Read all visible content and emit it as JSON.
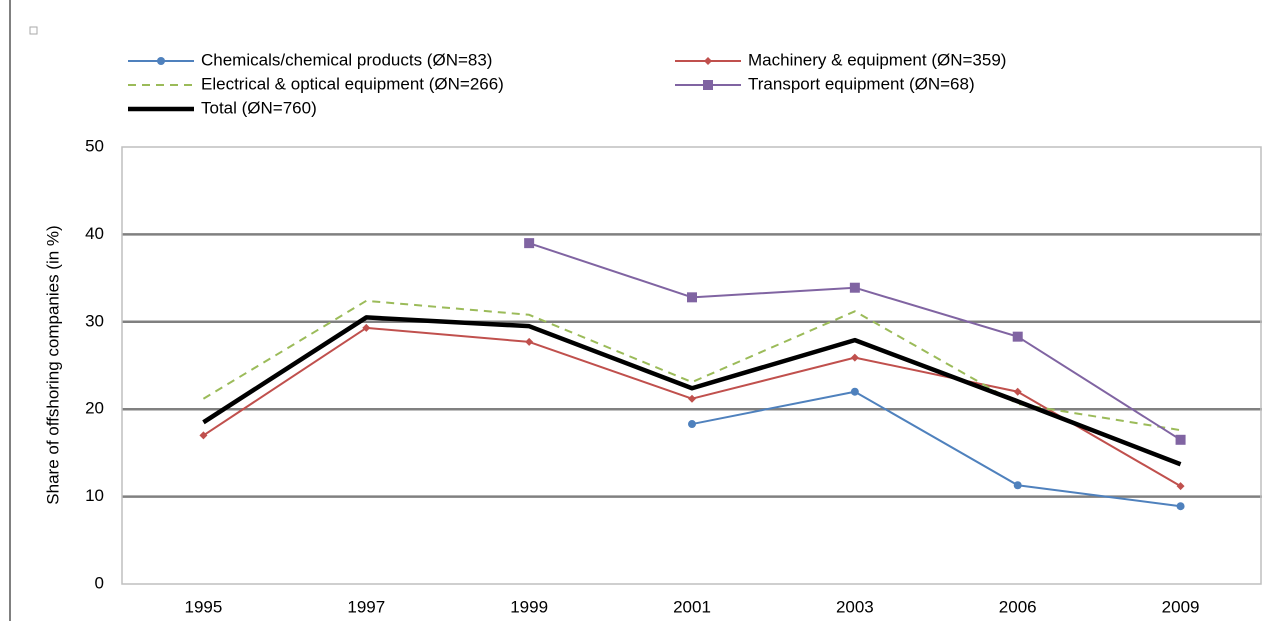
{
  "chart_data": {
    "type": "line",
    "y_label": "Share of offshoring companies (in %)",
    "categories": [
      "1995",
      "1997",
      "1999",
      "2001",
      "2003",
      "2006",
      "2009"
    ],
    "series": [
      {
        "name": "Chemicals/chemical products (ØN=83)",
        "color": "#4f81bd",
        "marker": "circle",
        "values": [
          null,
          null,
          null,
          18.3,
          22.0,
          11.3,
          8.9
        ]
      },
      {
        "name": "Machinery & equipment (ØN=359)",
        "color": "#c0504d",
        "marker": "diamond",
        "values": [
          17.0,
          29.3,
          27.7,
          21.2,
          25.9,
          22.0,
          11.2
        ]
      },
      {
        "name": "Electrical & optical equipment (ØN=266)",
        "color": "#9bbb59",
        "dashed": true,
        "values": [
          21.2,
          32.4,
          30.8,
          23.1,
          31.2,
          20.6,
          17.6
        ]
      },
      {
        "name": "Transport equipment (ØN=68)",
        "color": "#8064a2",
        "marker": "square",
        "values": [
          null,
          null,
          39.0,
          32.8,
          33.9,
          28.3,
          16.5
        ]
      },
      {
        "name": "Total (ØN=760)",
        "color": "#000000",
        "thick": true,
        "values": [
          18.5,
          30.5,
          29.5,
          22.4,
          27.9,
          20.9,
          13.7
        ]
      }
    ],
    "ylim": [
      0,
      50
    ],
    "yticks": [
      0,
      10,
      20,
      30,
      40,
      50
    ],
    "grid": true
  }
}
